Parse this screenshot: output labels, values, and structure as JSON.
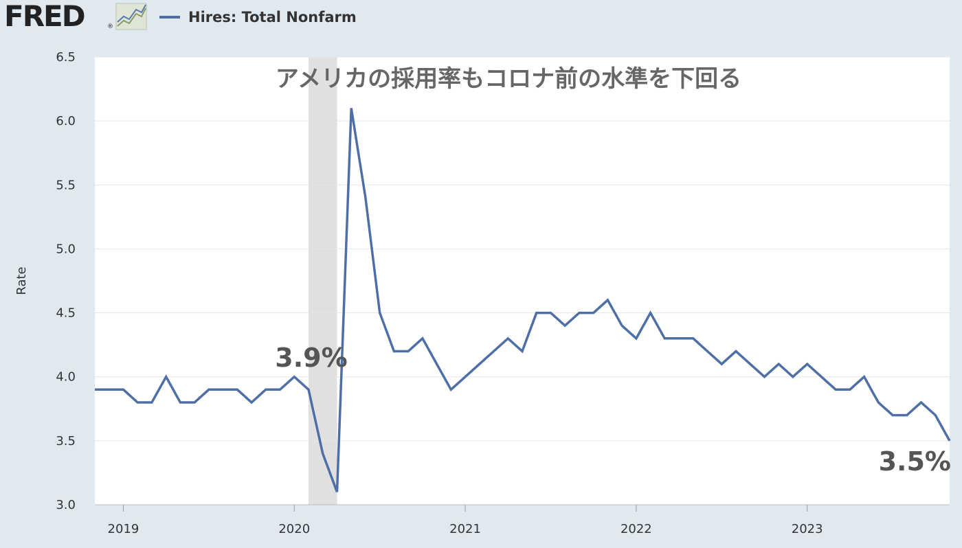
{
  "header": {
    "logo_text": "FRED",
    "logo_reg": "®",
    "logo_icon": "line-chart-icon"
  },
  "colors": {
    "background": "#e1e9f0",
    "plot_bg": "#ffffff",
    "series": "#4e6fa5",
    "recession_band": "#e0e0e0",
    "gridline": "#e6e6e6"
  },
  "chart_data": {
    "type": "line",
    "title": "",
    "legend": {
      "placement": "top-left",
      "entries": [
        "Hires: Total Nonfarm"
      ]
    },
    "xlabel": "",
    "ylabel": "Rate",
    "ylim": [
      3.0,
      6.5
    ],
    "yticks": [
      "3.0",
      "3.5",
      "4.0",
      "4.5",
      "5.0",
      "5.5",
      "6.0",
      "6.5"
    ],
    "xlim": [
      "2018-11",
      "2023-11"
    ],
    "xticks": [
      "2019",
      "2020",
      "2021",
      "2022",
      "2023"
    ],
    "grid": true,
    "recession_shading": [
      {
        "start": "2020-02",
        "end": "2020-04"
      }
    ],
    "annotations": [
      {
        "text": "アメリカの採用率もコロナ前の水準を下回る",
        "role": "headline"
      },
      {
        "text": "3.9%",
        "x": "2020-02"
      },
      {
        "text": "3.5%",
        "x": "2023-11"
      }
    ],
    "series": [
      {
        "name": "Hires: Total Nonfarm",
        "color": "#4e6fa5",
        "x": [
          "2018-11",
          "2018-12",
          "2019-01",
          "2019-02",
          "2019-03",
          "2019-04",
          "2019-05",
          "2019-06",
          "2019-07",
          "2019-08",
          "2019-09",
          "2019-10",
          "2019-11",
          "2019-12",
          "2020-01",
          "2020-02",
          "2020-03",
          "2020-04",
          "2020-05",
          "2020-06",
          "2020-07",
          "2020-08",
          "2020-09",
          "2020-10",
          "2020-11",
          "2020-12",
          "2021-01",
          "2021-02",
          "2021-03",
          "2021-04",
          "2021-05",
          "2021-06",
          "2021-07",
          "2021-08",
          "2021-09",
          "2021-10",
          "2021-11",
          "2021-12",
          "2022-01",
          "2022-02",
          "2022-03",
          "2022-04",
          "2022-05",
          "2022-06",
          "2022-07",
          "2022-08",
          "2022-09",
          "2022-10",
          "2022-11",
          "2022-12",
          "2023-01",
          "2023-02",
          "2023-03",
          "2023-04",
          "2023-05",
          "2023-06",
          "2023-07",
          "2023-08",
          "2023-09",
          "2023-10",
          "2023-11"
        ],
        "values": [
          3.9,
          3.9,
          3.9,
          3.8,
          3.8,
          4.0,
          3.8,
          3.8,
          3.9,
          3.9,
          3.9,
          3.8,
          3.9,
          3.9,
          4.0,
          3.9,
          3.4,
          3.1,
          6.1,
          5.4,
          4.5,
          4.2,
          4.2,
          4.3,
          4.1,
          3.9,
          4.0,
          4.1,
          4.2,
          4.3,
          4.2,
          4.5,
          4.5,
          4.4,
          4.5,
          4.5,
          4.6,
          4.4,
          4.3,
          4.5,
          4.3,
          4.3,
          4.3,
          4.2,
          4.1,
          4.2,
          4.1,
          4.0,
          4.1,
          4.0,
          4.1,
          4.0,
          3.9,
          3.9,
          4.0,
          3.8,
          3.7,
          3.7,
          3.8,
          3.7,
          3.5
        ]
      }
    ]
  }
}
